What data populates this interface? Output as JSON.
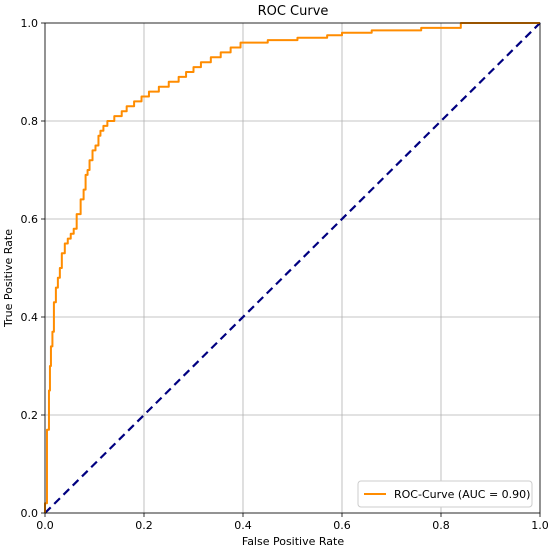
{
  "chart_data": {
    "type": "line",
    "title": "ROC Curve",
    "xlabel": "False Positive Rate",
    "ylabel": "True Positive Rate",
    "xlim": [
      0.0,
      1.0
    ],
    "ylim": [
      0.0,
      1.0
    ],
    "xticks": [
      "0.0",
      "0.2",
      "0.4",
      "0.6",
      "0.8",
      "1.0"
    ],
    "yticks": [
      "0.0",
      "0.2",
      "0.4",
      "0.6",
      "0.8",
      "1.0"
    ],
    "grid": true,
    "legend_position": "lower-right",
    "series": [
      {
        "name": "ROC-Curve (AUC = 0.90)",
        "color": "#ff8c00",
        "style": "solid",
        "x": [
          0.0,
          0.0,
          0.004,
          0.004,
          0.008,
          0.008,
          0.01,
          0.01,
          0.012,
          0.012,
          0.015,
          0.015,
          0.018,
          0.018,
          0.022,
          0.022,
          0.026,
          0.026,
          0.03,
          0.03,
          0.034,
          0.034,
          0.04,
          0.04,
          0.046,
          0.046,
          0.052,
          0.052,
          0.058,
          0.058,
          0.064,
          0.064,
          0.072,
          0.072,
          0.078,
          0.078,
          0.082,
          0.082,
          0.086,
          0.086,
          0.09,
          0.09,
          0.096,
          0.096,
          0.102,
          0.102,
          0.108,
          0.108,
          0.112,
          0.112,
          0.118,
          0.118,
          0.126,
          0.126,
          0.14,
          0.14,
          0.155,
          0.155,
          0.165,
          0.165,
          0.18,
          0.18,
          0.195,
          0.195,
          0.21,
          0.21,
          0.23,
          0.23,
          0.25,
          0.25,
          0.27,
          0.27,
          0.285,
          0.285,
          0.3,
          0.3,
          0.315,
          0.315,
          0.335,
          0.335,
          0.355,
          0.355,
          0.375,
          0.375,
          0.395,
          0.395,
          0.45,
          0.45,
          0.51,
          0.51,
          0.57,
          0.57,
          0.6,
          0.6,
          0.66,
          0.66,
          0.76,
          0.76,
          0.84,
          0.84,
          0.9,
          1.0
        ],
        "y": [
          0.0,
          0.02,
          0.02,
          0.17,
          0.17,
          0.25,
          0.25,
          0.3,
          0.3,
          0.34,
          0.34,
          0.37,
          0.37,
          0.43,
          0.43,
          0.46,
          0.46,
          0.48,
          0.48,
          0.5,
          0.5,
          0.53,
          0.53,
          0.55,
          0.55,
          0.56,
          0.56,
          0.57,
          0.57,
          0.58,
          0.58,
          0.61,
          0.61,
          0.64,
          0.64,
          0.66,
          0.66,
          0.69,
          0.69,
          0.7,
          0.7,
          0.72,
          0.72,
          0.74,
          0.74,
          0.75,
          0.75,
          0.77,
          0.77,
          0.78,
          0.78,
          0.79,
          0.79,
          0.8,
          0.8,
          0.81,
          0.81,
          0.82,
          0.82,
          0.83,
          0.83,
          0.84,
          0.84,
          0.85,
          0.85,
          0.86,
          0.86,
          0.87,
          0.87,
          0.88,
          0.88,
          0.89,
          0.89,
          0.9,
          0.9,
          0.91,
          0.91,
          0.92,
          0.92,
          0.93,
          0.93,
          0.94,
          0.94,
          0.95,
          0.95,
          0.96,
          0.96,
          0.965,
          0.965,
          0.97,
          0.97,
          0.975,
          0.975,
          0.98,
          0.98,
          0.985,
          0.985,
          0.99,
          0.99,
          1.0,
          1.0,
          1.0
        ]
      },
      {
        "name": "",
        "color": "#000080",
        "style": "dashed",
        "x": [
          0.0,
          1.0
        ],
        "y": [
          0.0,
          1.0
        ]
      }
    ],
    "legend": [
      {
        "label": "ROC-Curve (AUC = 0.90)",
        "color": "#ff8c00"
      }
    ]
  }
}
